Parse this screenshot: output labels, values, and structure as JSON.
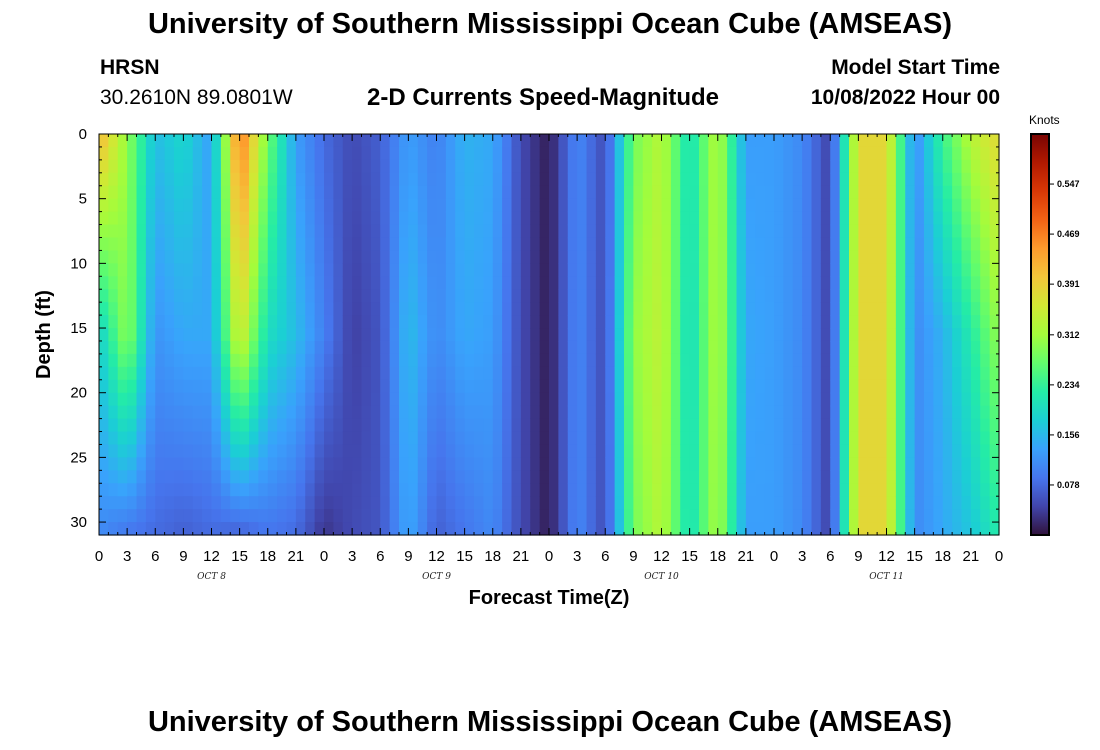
{
  "header": {
    "title": "University of Southern Mississippi Ocean Cube (AMSEAS)",
    "station": "HRSN",
    "coordinates": "30.2610N  89.0801W",
    "subtitle": "2-D Currents Speed-Magnitude",
    "model_start_label": "Model Start Time",
    "model_start_value": "10/08/2022 Hour 00"
  },
  "footer": {
    "title": "University of Southern Mississippi Ocean Cube (AMSEAS)"
  },
  "chart_data": {
    "type": "heatmap",
    "title": "2-D Currents Speed-Magnitude",
    "xlabel": "Forecast Time(Z)",
    "ylabel": "Depth (ft)",
    "x_hours": [
      0,
      3,
      6,
      9,
      12,
      15,
      18,
      21,
      24,
      27,
      30,
      33,
      36,
      39,
      42,
      45,
      48,
      51,
      54,
      57,
      60,
      63,
      66,
      69,
      72,
      75,
      78,
      81,
      84,
      87,
      90,
      93,
      96
    ],
    "x_tick_labels": [
      "0",
      "3",
      "6",
      "9",
      "12",
      "15",
      "18",
      "21",
      "0",
      "3",
      "6",
      "9",
      "12",
      "15",
      "18",
      "21",
      "0",
      "3",
      "6",
      "9",
      "12",
      "15",
      "18",
      "21",
      "0",
      "3",
      "6",
      "9",
      "12",
      "15",
      "18",
      "21",
      "0"
    ],
    "x_range": [
      0,
      96
    ],
    "day_labels": [
      {
        "label": "OCT 8",
        "hour": 12
      },
      {
        "label": "OCT 9",
        "hour": 36
      },
      {
        "label": "OCT 10",
        "hour": 60
      },
      {
        "label": "OCT 11",
        "hour": 84
      }
    ],
    "y_ticks": [
      0,
      5,
      10,
      15,
      20,
      25,
      30
    ],
    "y_tick_labels": [
      "0",
      "5",
      "10",
      "15",
      "20",
      "25",
      "30"
    ],
    "y_range": [
      0,
      31
    ],
    "y_inverted": true,
    "colorbar": {
      "unit": "Knots",
      "range": [
        0,
        0.625
      ],
      "tick_values": [
        0.078,
        0.156,
        0.234,
        0.312,
        0.391,
        0.469,
        0.547
      ],
      "tick_labels": [
        "0.078",
        "0.156",
        "0.234",
        "0.312",
        "0.391",
        "0.469",
        "0.547"
      ],
      "stops": [
        "#30123b",
        "#4145ab",
        "#4675ed",
        "#39a2fc",
        "#1bcfd4",
        "#24eca6",
        "#61fc6c",
        "#a4fc3b",
        "#d1e834",
        "#f3c63a",
        "#fe9b2d",
        "#f36315",
        "#d93806",
        "#b11901",
        "#7a0402"
      ]
    },
    "speed_profile_knots": [
      {
        "hour": 0,
        "surface": 0.42,
        "mid": 0.18,
        "bottom": 0.11
      },
      {
        "hour": 3,
        "surface": 0.3,
        "mid": 0.3,
        "bottom": 0.09
      },
      {
        "hour": 6,
        "surface": 0.16,
        "mid": 0.12,
        "bottom": 0.08
      },
      {
        "hour": 9,
        "surface": 0.19,
        "mid": 0.14,
        "bottom": 0.07
      },
      {
        "hour": 12,
        "surface": 0.13,
        "mid": 0.14,
        "bottom": 0.08
      },
      {
        "hour": 15,
        "surface": 0.48,
        "mid": 0.36,
        "bottom": 0.07
      },
      {
        "hour": 18,
        "surface": 0.28,
        "mid": 0.2,
        "bottom": 0.09
      },
      {
        "hour": 21,
        "surface": 0.13,
        "mid": 0.16,
        "bottom": 0.08
      },
      {
        "hour": 24,
        "surface": 0.08,
        "mid": 0.1,
        "bottom": 0.03
      },
      {
        "hour": 27,
        "surface": 0.05,
        "mid": 0.04,
        "bottom": 0.05
      },
      {
        "hour": 30,
        "surface": 0.07,
        "mid": 0.06,
        "bottom": 0.06
      },
      {
        "hour": 33,
        "surface": 0.13,
        "mid": 0.16,
        "bottom": 0.14
      },
      {
        "hour": 36,
        "surface": 0.1,
        "mid": 0.11,
        "bottom": 0.07
      },
      {
        "hour": 39,
        "surface": 0.15,
        "mid": 0.14,
        "bottom": 0.09
      },
      {
        "hour": 42,
        "surface": 0.14,
        "mid": 0.13,
        "bottom": 0.11
      },
      {
        "hour": 45,
        "surface": 0.05,
        "mid": 0.05,
        "bottom": 0.05
      },
      {
        "hour": 48,
        "surface": 0.01,
        "mid": 0.01,
        "bottom": 0.01
      },
      {
        "hour": 51,
        "surface": 0.11,
        "mid": 0.11,
        "bottom": 0.11
      },
      {
        "hour": 54,
        "surface": 0.05,
        "mid": 0.05,
        "bottom": 0.05
      },
      {
        "hour": 57,
        "surface": 0.28,
        "mid": 0.3,
        "bottom": 0.28
      },
      {
        "hour": 60,
        "surface": 0.33,
        "mid": 0.34,
        "bottom": 0.33
      },
      {
        "hour": 63,
        "surface": 0.2,
        "mid": 0.19,
        "bottom": 0.2
      },
      {
        "hour": 66,
        "surface": 0.33,
        "mid": 0.33,
        "bottom": 0.32
      },
      {
        "hour": 69,
        "surface": 0.13,
        "mid": 0.14,
        "bottom": 0.13
      },
      {
        "hour": 72,
        "surface": 0.13,
        "mid": 0.13,
        "bottom": 0.13
      },
      {
        "hour": 75,
        "surface": 0.11,
        "mid": 0.11,
        "bottom": 0.11
      },
      {
        "hour": 78,
        "surface": 0.04,
        "mid": 0.04,
        "bottom": 0.04
      },
      {
        "hour": 81,
        "surface": 0.38,
        "mid": 0.38,
        "bottom": 0.38
      },
      {
        "hour": 84,
        "surface": 0.38,
        "mid": 0.38,
        "bottom": 0.38
      },
      {
        "hour": 87,
        "surface": 0.11,
        "mid": 0.11,
        "bottom": 0.11
      },
      {
        "hour": 90,
        "surface": 0.24,
        "mid": 0.15,
        "bottom": 0.14
      },
      {
        "hour": 93,
        "surface": 0.33,
        "mid": 0.22,
        "bottom": 0.17
      },
      {
        "hour": 96,
        "surface": 0.38,
        "mid": 0.3,
        "bottom": 0.22
      }
    ]
  }
}
